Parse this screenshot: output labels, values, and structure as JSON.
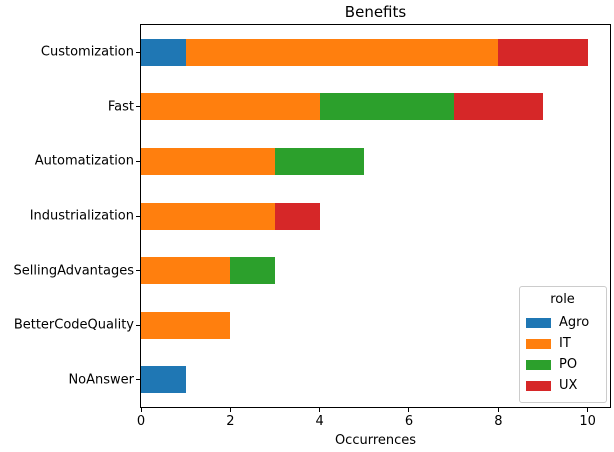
{
  "chart_data": {
    "type": "bar",
    "orientation": "horizontal",
    "stacked": true,
    "title": "Benefits",
    "xlabel": "Occurrences",
    "ylabel": "",
    "categories": [
      "Customization",
      "Fast",
      "Automatization",
      "Industrialization",
      "SellingAdvantages",
      "BetterCodeQuality",
      "NoAnswer"
    ],
    "series": [
      {
        "name": "Agro",
        "color": "#1f77b4",
        "values": [
          1,
          0,
          0,
          0,
          0,
          0,
          1
        ]
      },
      {
        "name": "IT",
        "color": "#ff7f0e",
        "values": [
          7,
          4,
          3,
          3,
          2,
          2,
          0
        ]
      },
      {
        "name": "PO",
        "color": "#2ca02c",
        "values": [
          0,
          3,
          2,
          0,
          1,
          0,
          0
        ]
      },
      {
        "name": "UX",
        "color": "#d62728",
        "values": [
          2,
          2,
          0,
          1,
          0,
          0,
          0
        ]
      }
    ],
    "totals": [
      10,
      9,
      5,
      4,
      3,
      2,
      1
    ],
    "xlim": [
      0,
      10.5
    ],
    "xticks": [
      0,
      2,
      4,
      6,
      8,
      10
    ],
    "grid": false,
    "legend": {
      "title": "role",
      "position": "lower right",
      "entries": [
        "Agro",
        "IT",
        "PO",
        "UX"
      ]
    }
  }
}
